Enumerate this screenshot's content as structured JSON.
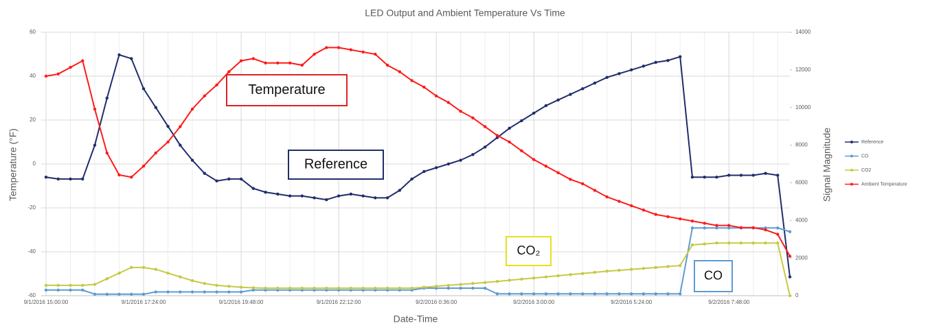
{
  "chart_data": {
    "type": "line",
    "title": "LED Output and Ambient Temperature  Vs Time",
    "x_label": "Date-Time",
    "y_label": "Temperature (°F)",
    "y2_label": "Signal Magnitude",
    "categories": [
      "9/1/2016 15:00:00",
      null,
      null,
      null,
      null,
      null,
      null,
      null,
      "9/1/2016 17:24:00",
      null,
      null,
      null,
      null,
      null,
      null,
      null,
      "9/1/2016 19:48:00",
      null,
      null,
      null,
      null,
      null,
      null,
      null,
      "9/1/2016 22:12:00",
      null,
      null,
      null,
      null,
      null,
      null,
      null,
      "9/2/2016 0:36:00",
      null,
      null,
      null,
      null,
      null,
      null,
      null,
      "9/2/2016 3:00:00",
      null,
      null,
      null,
      null,
      null,
      null,
      null,
      "9/2/2016 5:24:00",
      null,
      null,
      null,
      null,
      null,
      null,
      null,
      "9/2/2016 7:48:00",
      null,
      null,
      null,
      null,
      null
    ],
    "ylim": [
      -60,
      60
    ],
    "yticks": [
      -60,
      -40,
      -20,
      0,
      20,
      40,
      60
    ],
    "y2lim": [
      0,
      14000
    ],
    "y2ticks": [
      0,
      2000,
      4000,
      6000,
      8000,
      10000,
      12000,
      14000
    ],
    "grid": true,
    "series": [
      {
        "name": "Reference",
        "color": "#1f2d6b",
        "axis": "y2",
        "values": [
          6300,
          6200,
          6200,
          6200,
          8000,
          10500,
          12800,
          12600,
          11000,
          10000,
          9000,
          8000,
          7200,
          6500,
          6100,
          6200,
          6200,
          5700,
          5500,
          5400,
          5300,
          5300,
          5200,
          5100,
          5300,
          5400,
          5300,
          5200,
          5200,
          5600,
          6200,
          6600,
          6800,
          7000,
          7200,
          7500,
          7900,
          8400,
          8900,
          9300,
          9700,
          10100,
          10400,
          10700,
          11000,
          11300,
          11600,
          11800,
          12000,
          12200,
          12400,
          12500,
          12700,
          6300,
          6300,
          6300,
          6400,
          6400,
          6400,
          6500,
          6400,
          1000
        ]
      },
      {
        "name": "CO",
        "color": "#5b9bd5",
        "axis": "y2",
        "values": [
          300,
          300,
          300,
          300,
          80,
          80,
          80,
          80,
          80,
          200,
          200,
          200,
          200,
          200,
          200,
          200,
          200,
          300,
          300,
          300,
          300,
          300,
          300,
          300,
          300,
          300,
          300,
          300,
          300,
          300,
          300,
          400,
          400,
          400,
          400,
          400,
          400,
          100,
          100,
          100,
          100,
          100,
          100,
          100,
          100,
          100,
          100,
          100,
          100,
          100,
          100,
          100,
          100,
          3600,
          3600,
          3600,
          3600,
          3600,
          3600,
          3600,
          3600,
          3400
        ]
      },
      {
        "name": "CO2",
        "color": "#c8c845",
        "axis": "y2",
        "values": [
          550,
          550,
          550,
          550,
          600,
          900,
          1200,
          1500,
          1500,
          1400,
          1200,
          1000,
          800,
          650,
          550,
          500,
          450,
          420,
          400,
          400,
          400,
          400,
          400,
          400,
          400,
          400,
          400,
          400,
          400,
          400,
          400,
          450,
          500,
          550,
          600,
          650,
          700,
          760,
          820,
          880,
          940,
          1000,
          1060,
          1120,
          1180,
          1240,
          1300,
          1350,
          1400,
          1450,
          1500,
          1550,
          1600,
          2700,
          2750,
          2800,
          2800,
          2800,
          2800,
          2800,
          2800,
          0
        ]
      },
      {
        "name": "Ambient Temperature",
        "color": "#ff1a1a",
        "values": [
          40,
          41,
          44,
          47,
          25,
          5,
          -5,
          -6,
          -1,
          5,
          10,
          17,
          25,
          31,
          36,
          42,
          47,
          48,
          46,
          46,
          46,
          45,
          50,
          53,
          53,
          52,
          51,
          50,
          45,
          42,
          38,
          35,
          31,
          28,
          24,
          21,
          17,
          13,
          10,
          6,
          2,
          -1,
          -4,
          -7,
          -9,
          -12,
          -15,
          -17,
          -19,
          -21,
          -23,
          -24,
          -25,
          -26,
          -27,
          -28,
          -28,
          -29,
          -29,
          -30,
          -32,
          -42
        ]
      }
    ],
    "annotations": [
      {
        "text": "Temperature",
        "color": "#e02020"
      },
      {
        "text": "Reference",
        "color": "#1f2d6b"
      },
      {
        "text": "CO₂",
        "color": "#e6e020"
      },
      {
        "text": "CO",
        "color": "#5b9bd5"
      }
    ]
  }
}
